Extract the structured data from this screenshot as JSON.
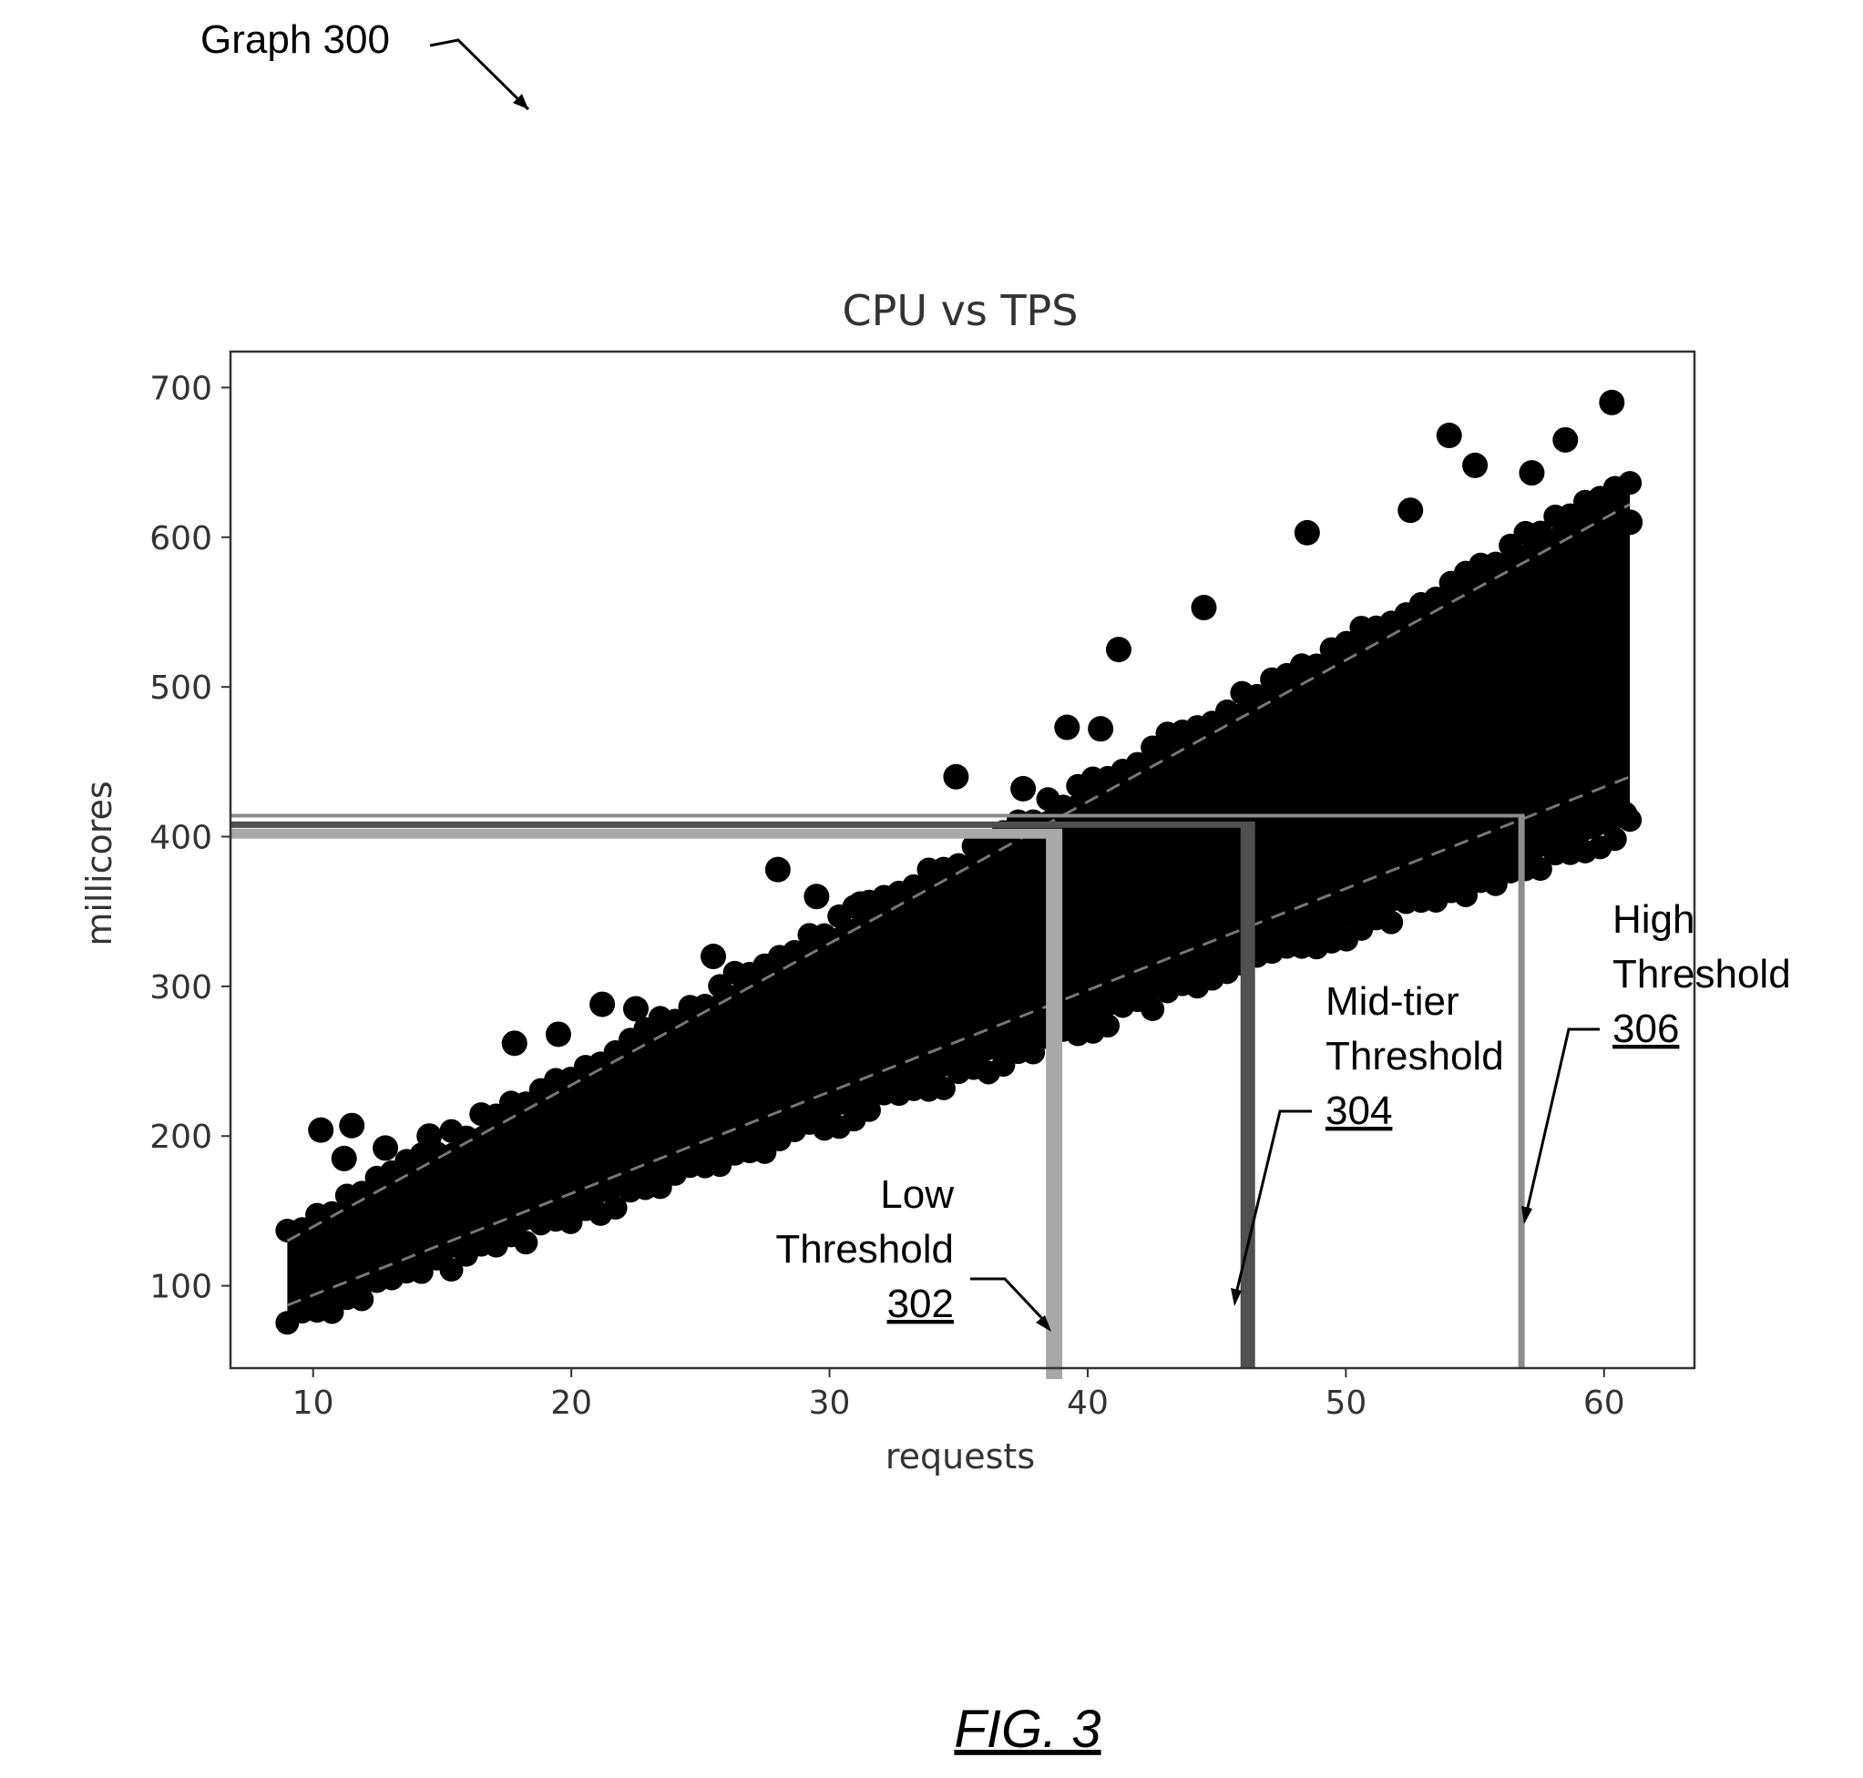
{
  "figure": {
    "graph_label": "Graph 300",
    "caption": "FIG. 3"
  },
  "chart_data": {
    "type": "scatter",
    "title": "CPU vs TPS",
    "xlabel": "requests",
    "ylabel": "millicores",
    "xlim": [
      6.8,
      63.5
    ],
    "ylim": [
      45,
      724
    ],
    "x_ticks": [
      10,
      20,
      30,
      40,
      50,
      60
    ],
    "y_ticks": [
      100,
      200,
      300,
      400,
      500,
      600,
      700
    ],
    "grid": false,
    "point_color": "#000000",
    "dense_band": {
      "x_range": [
        9,
        61
      ],
      "upper_at_x_min": 135,
      "upper_at_x_max": 635,
      "lower_at_x_min": 78,
      "lower_at_x_max": 408
    },
    "outliers": [
      {
        "x": 10.3,
        "y": 204
      },
      {
        "x": 11.5,
        "y": 207
      },
      {
        "x": 11.2,
        "y": 185
      },
      {
        "x": 12.8,
        "y": 192
      },
      {
        "x": 14.5,
        "y": 200
      },
      {
        "x": 17.8,
        "y": 262
      },
      {
        "x": 19.5,
        "y": 268
      },
      {
        "x": 21.2,
        "y": 288
      },
      {
        "x": 22.5,
        "y": 285
      },
      {
        "x": 25.5,
        "y": 320
      },
      {
        "x": 28.0,
        "y": 378
      },
      {
        "x": 29.5,
        "y": 360
      },
      {
        "x": 31.2,
        "y": 355
      },
      {
        "x": 34.9,
        "y": 440
      },
      {
        "x": 37.5,
        "y": 432
      },
      {
        "x": 39.2,
        "y": 473
      },
      {
        "x": 40.5,
        "y": 472
      },
      {
        "x": 41.2,
        "y": 525
      },
      {
        "x": 44.5,
        "y": 553
      },
      {
        "x": 48.5,
        "y": 603
      },
      {
        "x": 52.5,
        "y": 618
      },
      {
        "x": 54.0,
        "y": 668
      },
      {
        "x": 55.0,
        "y": 648
      },
      {
        "x": 57.2,
        "y": 643
      },
      {
        "x": 58.5,
        "y": 665
      },
      {
        "x": 60.3,
        "y": 690
      },
      {
        "x": 61.0,
        "y": 610
      },
      {
        "x": 60.8,
        "y": 415
      }
    ],
    "fit_lines": [
      {
        "x": [
          9,
          61
        ],
        "y": [
          130,
          622
        ],
        "color": "#777777",
        "style": "dashed"
      },
      {
        "x": [
          9,
          61
        ],
        "y": [
          87,
          440
        ],
        "color": "#777777",
        "style": "dashed"
      }
    ],
    "thresholds": [
      {
        "label_lines": [
          "Low",
          "Threshold"
        ],
        "ref": "302",
        "x": 38.7,
        "y": 402,
        "color": "#a8a8a8"
      },
      {
        "label_lines": [
          "Mid-tier",
          "Threshold"
        ],
        "ref": "304",
        "x": 46.2,
        "y": 408,
        "color": "#505050"
      },
      {
        "label_lines": [
          "High",
          "Threshold"
        ],
        "ref": "306",
        "x": 56.8,
        "y": 414,
        "color": "#8c8c8c"
      }
    ]
  }
}
